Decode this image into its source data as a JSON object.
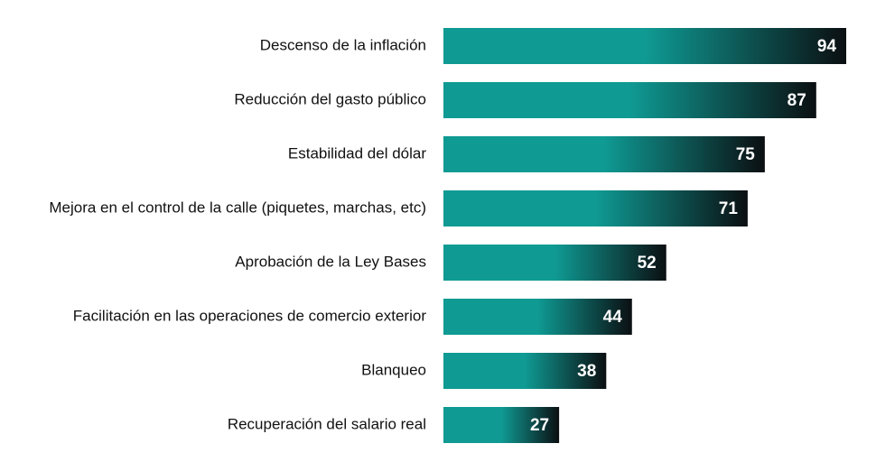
{
  "chart_data": {
    "type": "barh",
    "categories": [
      "Descenso de la inflación",
      "Reducción del gasto público",
      "Estabilidad del dólar",
      "Mejora en el control de la calle (piquetes, marchas, etc)",
      "Aprobación de la Ley Bases",
      "Facilitación en las operaciones de comercio exterior",
      "Blanqueo",
      "Recuperación del salario real"
    ],
    "values": [
      94,
      87,
      75,
      71,
      52,
      44,
      38,
      27
    ],
    "color": "#0f9a93",
    "end_color": "#0b0f12"
  }
}
